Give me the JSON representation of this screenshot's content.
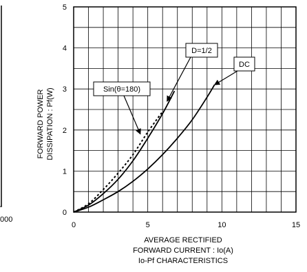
{
  "chart_data": {
    "type": "line",
    "title": "Io-Pf CHARACTERISTICS",
    "xlabel": [
      "AVERAGE RECTIFIED",
      "FORWARD CURRENT : Io(A)"
    ],
    "ylabel": [
      "FORWARD POWER",
      "DISSIPATION : Pf(W)"
    ],
    "xlim": [
      0,
      15
    ],
    "ylim": [
      0,
      5
    ],
    "x_ticks": [
      "0",
      "5",
      "10",
      "15"
    ],
    "y_ticks": [
      "0",
      "1",
      "2",
      "3",
      "4",
      "5"
    ],
    "grid": true,
    "series": [
      {
        "name": "DC",
        "style": "solid",
        "x": [
          0,
          1,
          2,
          3,
          4,
          5,
          6,
          7,
          8,
          9,
          9.5
        ],
        "y": [
          0,
          0.12,
          0.3,
          0.5,
          0.75,
          1.05,
          1.4,
          1.8,
          2.25,
          2.8,
          3.1
        ]
      },
      {
        "name": "D=1/2",
        "style": "solid",
        "x": [
          0,
          1,
          2,
          3,
          4,
          5,
          6,
          6.8
        ],
        "y": [
          0,
          0.17,
          0.45,
          0.8,
          1.25,
          1.8,
          2.4,
          2.95
        ]
      },
      {
        "name": "Sin(θ=180)",
        "style": "dashed",
        "x": [
          0,
          1,
          2,
          3,
          4,
          5,
          6
        ],
        "y": [
          0,
          0.2,
          0.55,
          0.95,
          1.4,
          1.95,
          2.45
        ]
      }
    ],
    "annotations": [
      {
        "label": "D=1/2",
        "target": "D=1/2"
      },
      {
        "label": "DC",
        "target": "DC"
      },
      {
        "label": "Sin(θ=180)",
        "target": "Sin(θ=180)"
      }
    ]
  },
  "left_fragment": {
    "label": "000"
  }
}
